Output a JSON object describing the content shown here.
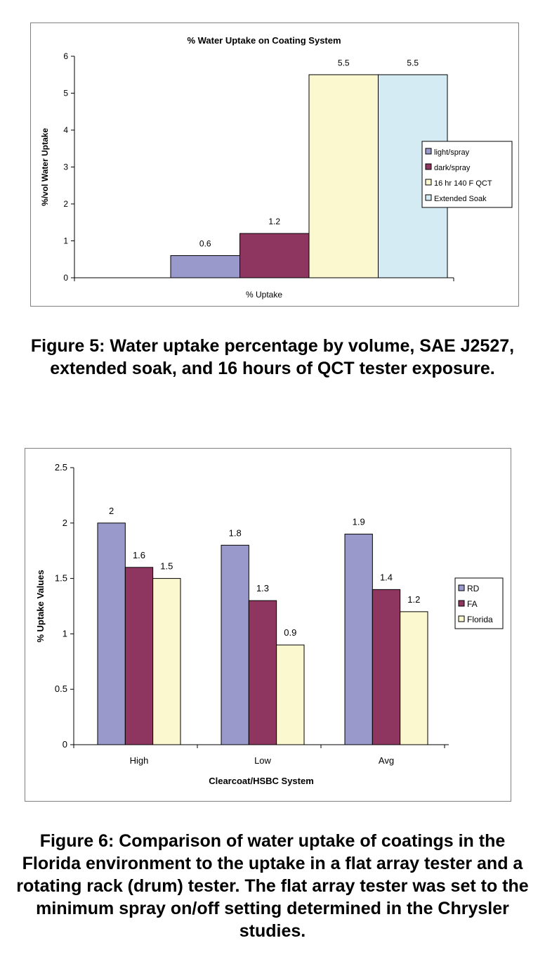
{
  "chart_data": [
    {
      "type": "bar",
      "title": "% Water Uptake on Coating System",
      "xlabel": "% Uptake",
      "ylabel": "%/vol Water Uptake",
      "ylim": [
        0,
        6
      ],
      "yticks": [
        "0",
        "1",
        "2",
        "3",
        "4",
        "5",
        "6"
      ],
      "categories": [
        ""
      ],
      "series": [
        {
          "name": "light/spray",
          "values": [
            0.6
          ],
          "labels": [
            "0.6"
          ],
          "color": "#9999cc"
        },
        {
          "name": "dark/spray",
          "values": [
            1.2
          ],
          "labels": [
            "1.2"
          ],
          "color": "#8e3660"
        },
        {
          "name": "16 hr 140 F QCT",
          "values": [
            5.5
          ],
          "labels": [
            "5.5"
          ],
          "color": "#fbf8cf"
        },
        {
          "name": "Extended Soak",
          "values": [
            5.5
          ],
          "labels": [
            "5.5"
          ],
          "color": "#d4ebf4"
        }
      ],
      "grid": false,
      "legend": "right"
    },
    {
      "type": "bar",
      "title": "",
      "xlabel": "Clearcoat/HSBC System",
      "ylabel": "% Uptake Values",
      "ylim": [
        0,
        2.5
      ],
      "yticks": [
        "0",
        "0.5",
        "1",
        "1.5",
        "2",
        "2.5"
      ],
      "categories": [
        "High",
        "Low",
        "Avg"
      ],
      "series": [
        {
          "name": "RD",
          "values": [
            2,
            1.8,
            1.9
          ],
          "labels": [
            "2",
            "1.8",
            "1.9"
          ],
          "color": "#9999cc"
        },
        {
          "name": "FA",
          "values": [
            1.6,
            1.3,
            1.4
          ],
          "labels": [
            "1.6",
            "1.3",
            "1.4"
          ],
          "color": "#8e3660"
        },
        {
          "name": "Florida",
          "values": [
            1.5,
            0.9,
            1.2
          ],
          "labels": [
            "1.5",
            "0.9",
            "1.2"
          ],
          "color": "#fbf8cf"
        }
      ],
      "grid": false,
      "legend": "right"
    }
  ],
  "captions": {
    "figure5": "Figure 5: Water uptake percentage by volume, SAE J2527, extended soak, and 16 hours of QCT tester exposure.",
    "figure6": "Figure 6: Comparison of water uptake of coatings in the Florida environment to the uptake in a flat array tester and a rotating rack (drum) tester. The flat array tester was set to the minimum spray on/off setting determined in the Chrysler studies."
  }
}
